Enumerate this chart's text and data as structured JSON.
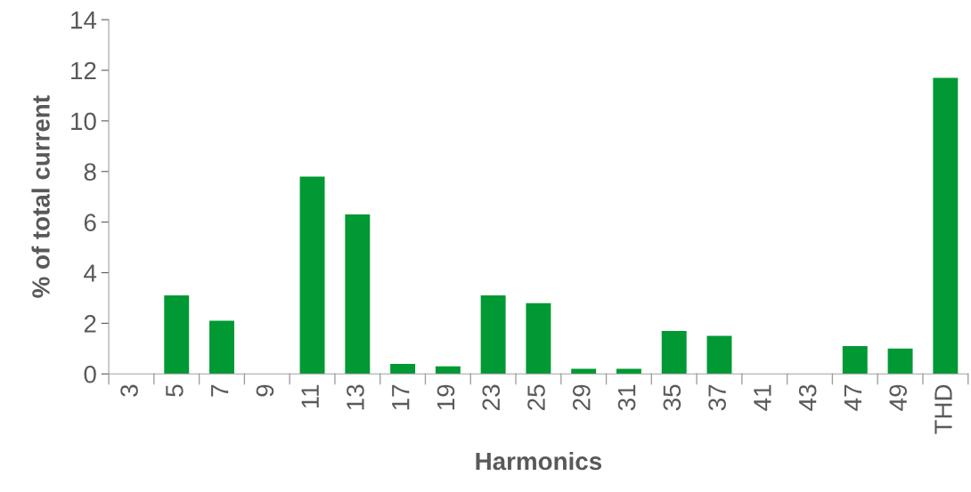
{
  "chart_data": {
    "type": "bar",
    "xlabel": "Harmonics",
    "ylabel": "% of total current",
    "categories": [
      "3",
      "5",
      "7",
      "9",
      "11",
      "13",
      "17",
      "19",
      "23",
      "25",
      "29",
      "31",
      "35",
      "37",
      "41",
      "43",
      "47",
      "49",
      "THD"
    ],
    "values": [
      0,
      3.1,
      2.1,
      0,
      7.8,
      6.3,
      0.4,
      0.3,
      3.1,
      2.8,
      0.2,
      0.2,
      1.7,
      1.5,
      0,
      0,
      1.1,
      1.0,
      11.7
    ],
    "color": "#009933",
    "ylim": [
      0,
      14
    ],
    "yticks": [
      0,
      2,
      4,
      6,
      8,
      10,
      12,
      14
    ],
    "grid": false,
    "legend": false
  }
}
